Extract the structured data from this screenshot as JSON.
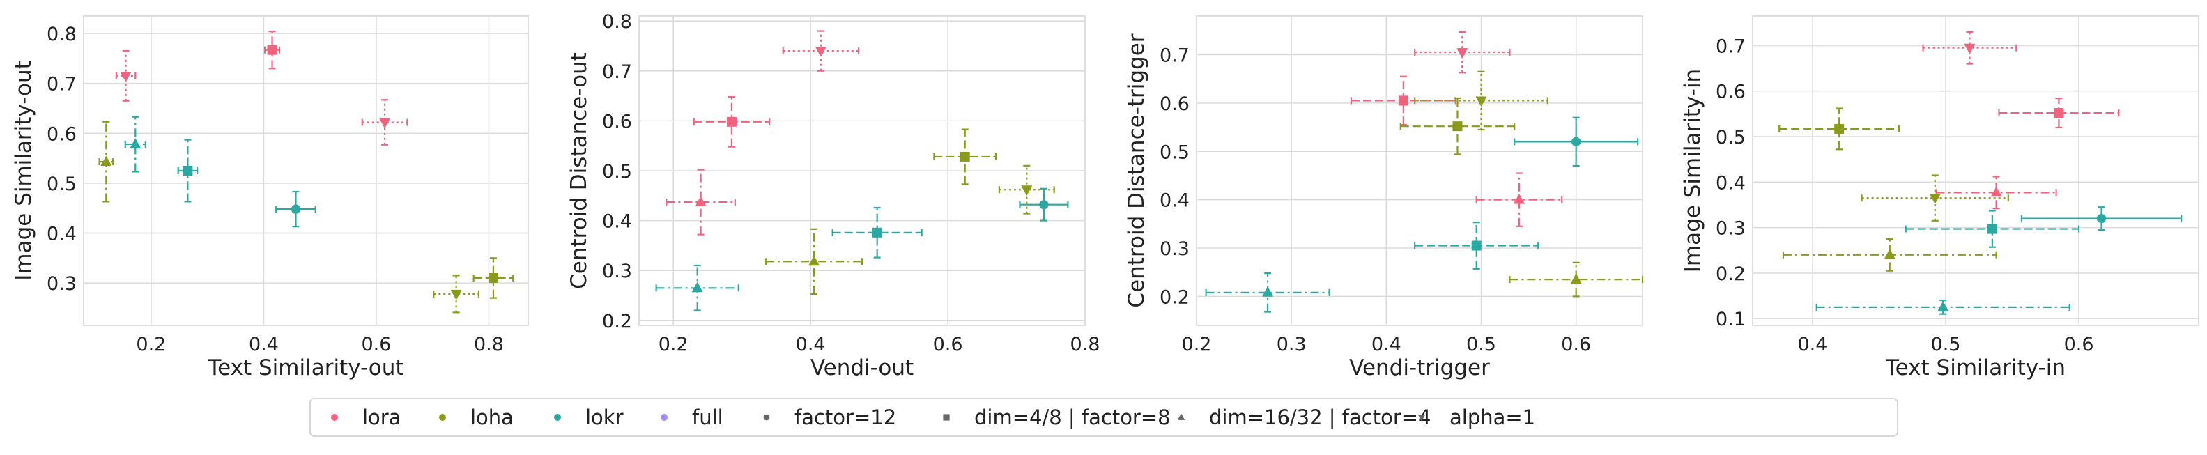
{
  "colors": {
    "lora": "#f0637f",
    "loha": "#8c9a1b",
    "lokr": "#2aa8a1",
    "full": "#a38cf4",
    "neutral": "#666666",
    "grid": "#dcdcdc",
    "spine": "#d6d6d6"
  },
  "legend": {
    "location": "bottom-center",
    "items": [
      {
        "label": "lora",
        "kind": "color",
        "color_key": "lora"
      },
      {
        "label": "loha",
        "kind": "color",
        "color_key": "loha"
      },
      {
        "label": "lokr",
        "kind": "color",
        "color_key": "lokr"
      },
      {
        "label": "full",
        "kind": "color",
        "color_key": "full"
      },
      {
        "label": "factor=12",
        "kind": "marker",
        "marker": "circle"
      },
      {
        "label": "dim=4/8 | factor=8",
        "kind": "marker",
        "marker": "square"
      },
      {
        "label": "dim=16/32 | factor=4",
        "kind": "marker",
        "marker": "triangle-up"
      },
      {
        "label": "alpha=1",
        "kind": "marker",
        "marker": "triangle-down"
      }
    ]
  },
  "chart_data": [
    {
      "type": "scatter",
      "xlabel": "Text Similarity-out",
      "ylabel": "Image Similarity-out",
      "xlim": [
        0.08,
        0.87
      ],
      "ylim": [
        0.215,
        0.835
      ],
      "xticks": [
        "0.2",
        "0.4",
        "0.6",
        "0.8"
      ],
      "yticks": [
        "0.3",
        "0.4",
        "0.5",
        "0.6",
        "0.7",
        "0.8"
      ],
      "points": [
        {
          "algo": "lora",
          "marker": "triangle-down",
          "x": 0.155,
          "y": 0.715,
          "xerr": 0.017,
          "yerr": 0.05
        },
        {
          "algo": "lora",
          "marker": "square",
          "x": 0.415,
          "y": 0.767,
          "xerr": 0.013,
          "yerr": 0.037
        },
        {
          "algo": "lora",
          "marker": "triangle-down",
          "x": 0.615,
          "y": 0.622,
          "xerr": 0.04,
          "yerr": 0.045
        },
        {
          "algo": "loha",
          "marker": "triangle-up",
          "x": 0.12,
          "y": 0.543,
          "xerr": 0.012,
          "yerr": 0.08
        },
        {
          "algo": "lokr",
          "marker": "triangle-up",
          "x": 0.172,
          "y": 0.578,
          "xerr": 0.018,
          "yerr": 0.055
        },
        {
          "algo": "lokr",
          "marker": "square",
          "x": 0.265,
          "y": 0.525,
          "xerr": 0.017,
          "yerr": 0.062
        },
        {
          "algo": "lokr",
          "marker": "circle",
          "x": 0.457,
          "y": 0.448,
          "xerr": 0.035,
          "yerr": 0.035
        },
        {
          "algo": "loha",
          "marker": "triangle-down",
          "x": 0.742,
          "y": 0.278,
          "xerr": 0.04,
          "yerr": 0.037
        },
        {
          "algo": "loha",
          "marker": "square",
          "x": 0.808,
          "y": 0.31,
          "xerr": 0.035,
          "yerr": 0.04
        }
      ]
    },
    {
      "type": "scatter",
      "xlabel": "Vendi-out",
      "ylabel": "Centroid Distance-out",
      "xlim": [
        0.15,
        0.8
      ],
      "ylim": [
        0.19,
        0.81
      ],
      "xticks": [
        "0.2",
        "0.4",
        "0.6",
        "0.8"
      ],
      "yticks": [
        "0.2",
        "0.3",
        "0.4",
        "0.5",
        "0.6",
        "0.7",
        "0.8"
      ],
      "points": [
        {
          "algo": "lora",
          "marker": "triangle-down",
          "x": 0.415,
          "y": 0.74,
          "xerr": 0.055,
          "yerr": 0.04
        },
        {
          "algo": "lora",
          "marker": "square",
          "x": 0.285,
          "y": 0.598,
          "xerr": 0.055,
          "yerr": 0.05
        },
        {
          "algo": "lora",
          "marker": "triangle-up",
          "x": 0.24,
          "y": 0.437,
          "xerr": 0.05,
          "yerr": 0.065
        },
        {
          "algo": "loha",
          "marker": "square",
          "x": 0.625,
          "y": 0.528,
          "xerr": 0.045,
          "yerr": 0.055
        },
        {
          "algo": "loha",
          "marker": "triangle-down",
          "x": 0.715,
          "y": 0.462,
          "xerr": 0.04,
          "yerr": 0.048
        },
        {
          "algo": "loha",
          "marker": "triangle-up",
          "x": 0.405,
          "y": 0.318,
          "xerr": 0.07,
          "yerr": 0.065
        },
        {
          "algo": "lokr",
          "marker": "circle",
          "x": 0.74,
          "y": 0.432,
          "xerr": 0.035,
          "yerr": 0.032
        },
        {
          "algo": "lokr",
          "marker": "square",
          "x": 0.497,
          "y": 0.376,
          "xerr": 0.065,
          "yerr": 0.05
        },
        {
          "algo": "lokr",
          "marker": "triangle-up",
          "x": 0.235,
          "y": 0.265,
          "xerr": 0.06,
          "yerr": 0.045
        }
      ]
    },
    {
      "type": "scatter",
      "xlabel": "Vendi-trigger",
      "ylabel": "Centroid Distance-trigger",
      "xlim": [
        0.2,
        0.67
      ],
      "ylim": [
        0.14,
        0.78
      ],
      "xticks": [
        "0.2",
        "0.3",
        "0.4",
        "0.5",
        "0.6"
      ],
      "yticks": [
        "0.2",
        "0.3",
        "0.4",
        "0.5",
        "0.6",
        "0.7"
      ],
      "points": [
        {
          "algo": "lora",
          "marker": "triangle-down",
          "x": 0.48,
          "y": 0.705,
          "xerr": 0.05,
          "yerr": 0.042
        },
        {
          "algo": "lora",
          "marker": "square",
          "x": 0.418,
          "y": 0.605,
          "xerr": 0.055,
          "yerr": 0.05
        },
        {
          "algo": "lora",
          "marker": "triangle-up",
          "x": 0.54,
          "y": 0.4,
          "xerr": 0.045,
          "yerr": 0.055
        },
        {
          "algo": "loha",
          "marker": "triangle-down",
          "x": 0.5,
          "y": 0.605,
          "xerr": 0.07,
          "yerr": 0.06
        },
        {
          "algo": "loha",
          "marker": "square",
          "x": 0.475,
          "y": 0.552,
          "xerr": 0.06,
          "yerr": 0.058
        },
        {
          "algo": "loha",
          "marker": "triangle-up",
          "x": 0.6,
          "y": 0.235,
          "xerr": 0.07,
          "yerr": 0.035
        },
        {
          "algo": "lokr",
          "marker": "circle",
          "x": 0.6,
          "y": 0.52,
          "xerr": 0.065,
          "yerr": 0.05
        },
        {
          "algo": "lokr",
          "marker": "square",
          "x": 0.495,
          "y": 0.305,
          "xerr": 0.065,
          "yerr": 0.048
        },
        {
          "algo": "lokr",
          "marker": "triangle-up",
          "x": 0.275,
          "y": 0.208,
          "xerr": 0.065,
          "yerr": 0.04
        }
      ]
    },
    {
      "type": "scatter",
      "xlabel": "Text Similarity-in",
      "ylabel": "Image Similarity-in",
      "xlim": [
        0.355,
        0.69
      ],
      "ylim": [
        0.085,
        0.765
      ],
      "xticks": [
        "0.4",
        "0.5",
        "0.6"
      ],
      "yticks": [
        "0.1",
        "0.2",
        "0.3",
        "0.4",
        "0.5",
        "0.6",
        "0.7"
      ],
      "points": [
        {
          "algo": "lora",
          "marker": "triangle-down",
          "x": 0.518,
          "y": 0.695,
          "xerr": 0.035,
          "yerr": 0.035
        },
        {
          "algo": "lora",
          "marker": "square",
          "x": 0.585,
          "y": 0.552,
          "xerr": 0.045,
          "yerr": 0.032
        },
        {
          "algo": "lora",
          "marker": "triangle-up",
          "x": 0.538,
          "y": 0.377,
          "xerr": 0.045,
          "yerr": 0.035
        },
        {
          "algo": "loha",
          "marker": "square",
          "x": 0.42,
          "y": 0.517,
          "xerr": 0.045,
          "yerr": 0.045
        },
        {
          "algo": "loha",
          "marker": "triangle-down",
          "x": 0.492,
          "y": 0.365,
          "xerr": 0.055,
          "yerr": 0.05
        },
        {
          "algo": "loha",
          "marker": "triangle-up",
          "x": 0.458,
          "y": 0.24,
          "xerr": 0.08,
          "yerr": 0.035
        },
        {
          "algo": "lokr",
          "marker": "circle",
          "x": 0.617,
          "y": 0.32,
          "xerr": 0.06,
          "yerr": 0.025
        },
        {
          "algo": "lokr",
          "marker": "square",
          "x": 0.535,
          "y": 0.297,
          "xerr": 0.065,
          "yerr": 0.04
        },
        {
          "algo": "lokr",
          "marker": "triangle-up",
          "x": 0.498,
          "y": 0.125,
          "xerr": 0.095,
          "yerr": 0.015
        }
      ]
    }
  ]
}
